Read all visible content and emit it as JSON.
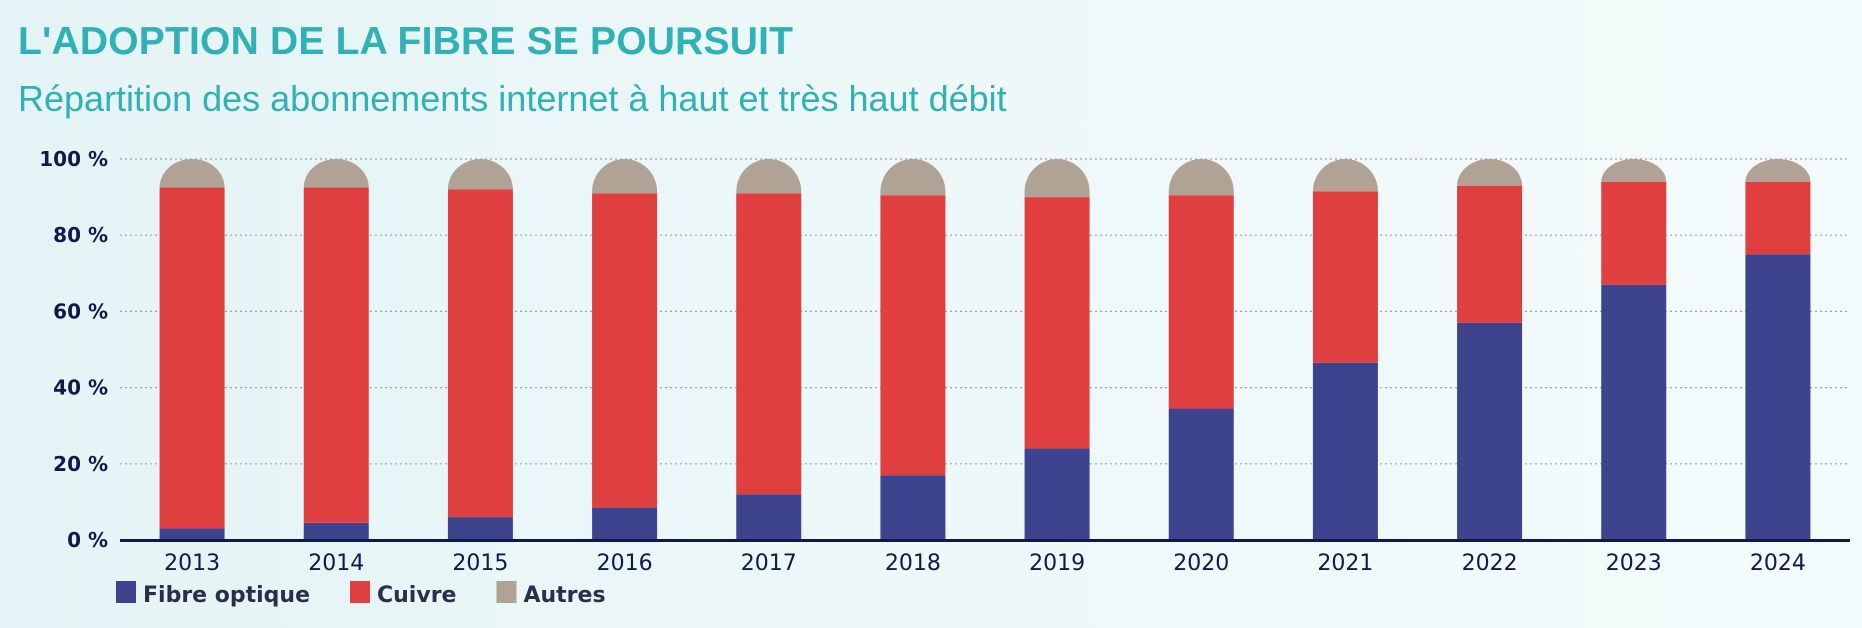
{
  "header": {
    "title": "L'ADOPTION DE LA FIBRE SE POURSUIT",
    "subtitle": "Répartition des abonnements internet à haut et très haut débit"
  },
  "chart_data": {
    "type": "bar",
    "stacked": true,
    "title": "L'ADOPTION DE LA FIBRE SE POURSUIT",
    "subtitle": "Répartition des abonnements internet à haut et très haut débit",
    "categories": [
      "2013",
      "2014",
      "2015",
      "2016",
      "2017",
      "2018",
      "2019",
      "2020",
      "2021",
      "2022",
      "2023",
      "2024"
    ],
    "series": [
      {
        "name": "Fibre optique",
        "color": "#3d438c",
        "values": [
          3,
          4.5,
          6,
          8.5,
          12,
          17,
          24,
          34.5,
          46.5,
          57,
          67,
          75
        ]
      },
      {
        "name": "Cuivre",
        "color": "#df3f3f",
        "values": [
          89.5,
          88,
          86,
          82.5,
          79,
          73.5,
          66,
          56,
          45,
          36,
          27,
          19
        ]
      },
      {
        "name": "Autres",
        "color": "#b0a295",
        "values": [
          7.5,
          7.5,
          8,
          9,
          9,
          9.5,
          10,
          9.5,
          8.5,
          7,
          6,
          6
        ]
      }
    ],
    "yticks": [
      "0 %",
      "20 %",
      "40 %",
      "60 %",
      "80 %",
      "100 %"
    ],
    "ylim": [
      0,
      100
    ],
    "xlabel": "",
    "ylabel": "",
    "grid": true,
    "legend": "bottom-left"
  }
}
